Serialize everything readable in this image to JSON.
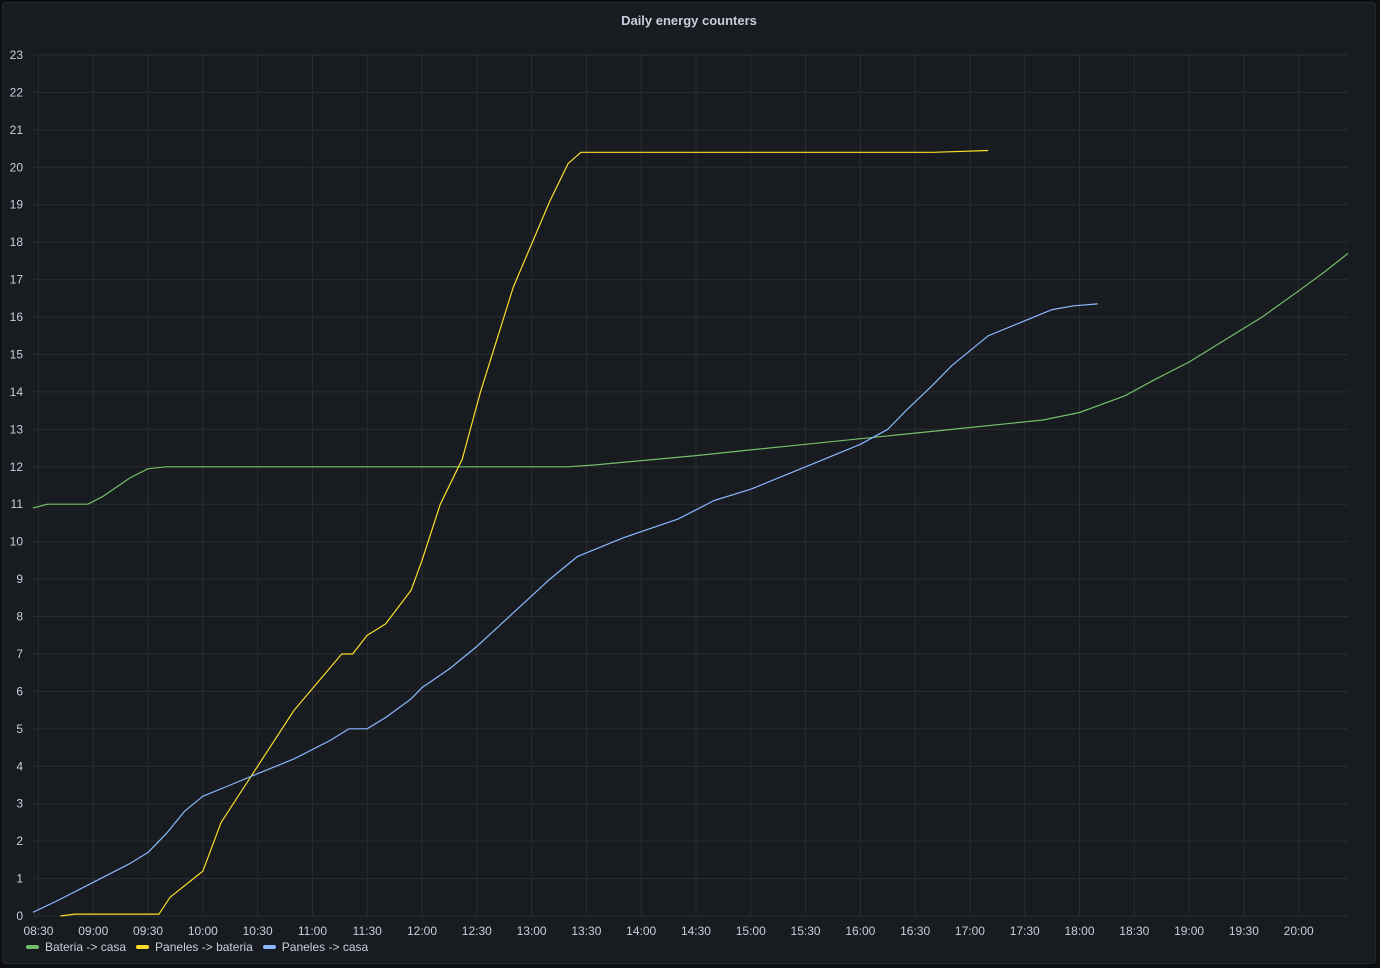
{
  "chart_data": {
    "type": "line",
    "title": "Daily energy counters",
    "xlabel": "",
    "ylabel": "",
    "x_tick_labels": [
      "08:30",
      "09:00",
      "09:30",
      "10:00",
      "10:30",
      "11:00",
      "11:30",
      "12:00",
      "12:30",
      "13:00",
      "13:30",
      "14:00",
      "14:30",
      "15:00",
      "15:30",
      "16:00",
      "16:30",
      "17:00",
      "17:30",
      "18:00",
      "18:30",
      "19:00",
      "19:30",
      "20:00"
    ],
    "x_tick_minutes": [
      510,
      540,
      570,
      600,
      630,
      660,
      690,
      720,
      750,
      780,
      810,
      840,
      870,
      900,
      930,
      960,
      990,
      1020,
      1050,
      1080,
      1110,
      1140,
      1170,
      1200
    ],
    "y_ticks": [
      0,
      1,
      2,
      3,
      4,
      5,
      6,
      7,
      8,
      9,
      10,
      11,
      12,
      13,
      14,
      15,
      16,
      17,
      18,
      19,
      20,
      21,
      22,
      23
    ],
    "xlim_minutes": [
      507,
      1227
    ],
    "ylim": [
      0,
      23
    ],
    "grid": true,
    "legend_position": "bottom-left",
    "series": [
      {
        "name": "Bateria -> casa",
        "color": "#73bf69",
        "x_minutes": [
          507,
          515,
          537,
          545,
          560,
          570,
          580,
          720,
          800,
          815,
          870,
          900,
          930,
          960,
          990,
          1020,
          1060,
          1080,
          1105,
          1120,
          1140,
          1160,
          1180,
          1200,
          1214,
          1227
        ],
        "values": [
          10.9,
          11.0,
          11.0,
          11.2,
          11.7,
          11.95,
          12.0,
          12.0,
          12.0,
          12.05,
          12.3,
          12.45,
          12.6,
          12.75,
          12.9,
          13.05,
          13.25,
          13.45,
          13.9,
          14.3,
          14.8,
          15.4,
          16.0,
          16.7,
          17.2,
          17.7
        ]
      },
      {
        "name": "Paneles -> bateria",
        "color": "#fade2a",
        "x_minutes": [
          522,
          530,
          560,
          576,
          582,
          600,
          610,
          630,
          650,
          676,
          682,
          690,
          700,
          714,
          720,
          730,
          742,
          752,
          770,
          790,
          800,
          807,
          810,
          900,
          1000,
          1030
        ],
        "values": [
          0.0,
          0.05,
          0.05,
          0.05,
          0.5,
          1.2,
          2.5,
          4.0,
          5.5,
          7.0,
          7.0,
          7.5,
          7.8,
          8.7,
          9.5,
          11.0,
          12.2,
          14.0,
          16.8,
          19.1,
          20.1,
          20.4,
          20.4,
          20.4,
          20.4,
          20.45
        ]
      },
      {
        "name": "Paneles -> casa",
        "color": "#8ab8ff",
        "x_minutes": [
          507,
          520,
          540,
          560,
          570,
          580,
          590,
          600,
          615,
          630,
          650,
          670,
          680,
          690,
          700,
          714,
          720,
          735,
          750,
          770,
          790,
          805,
          830,
          860,
          880,
          900,
          930,
          960,
          975,
          985,
          1000,
          1010,
          1030,
          1050,
          1065,
          1077,
          1090
        ],
        "values": [
          0.1,
          0.4,
          0.9,
          1.4,
          1.7,
          2.2,
          2.8,
          3.2,
          3.5,
          3.8,
          4.2,
          4.7,
          5.0,
          5.0,
          5.3,
          5.8,
          6.1,
          6.6,
          7.2,
          8.1,
          9.0,
          9.6,
          10.1,
          10.6,
          11.1,
          11.4,
          12.0,
          12.6,
          13.0,
          13.5,
          14.2,
          14.7,
          15.5,
          15.9,
          16.2,
          16.3,
          16.35
        ]
      }
    ]
  }
}
